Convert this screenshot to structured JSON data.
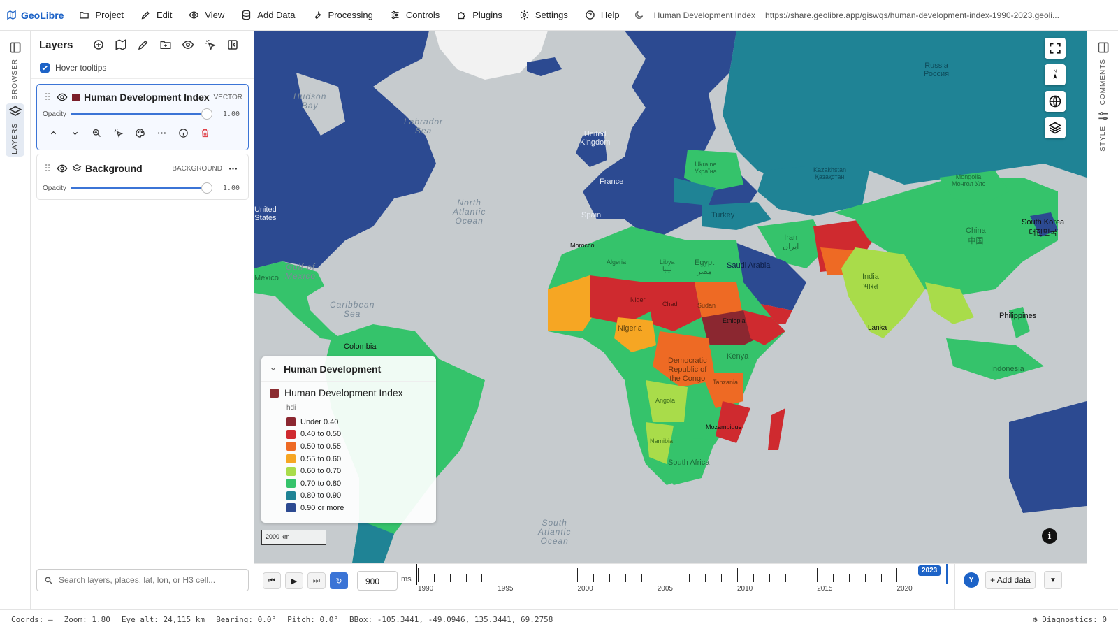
{
  "app": {
    "name": "GeoLibre",
    "doc_title": "Human Development Index",
    "url": "https://share.geolibre.app/giswqs/human-development-index-1990-2023.geoli..."
  },
  "menu": [
    {
      "label": "Project",
      "icon": "folder-icon"
    },
    {
      "label": "Edit",
      "icon": "pencil-icon"
    },
    {
      "label": "View",
      "icon": "eye-icon"
    },
    {
      "label": "Add Data",
      "icon": "database-icon"
    },
    {
      "label": "Processing",
      "icon": "wrench-icon"
    },
    {
      "label": "Controls",
      "icon": "sliders-icon"
    },
    {
      "label": "Plugins",
      "icon": "puzzle-icon"
    },
    {
      "label": "Settings",
      "icon": "gear-icon"
    },
    {
      "label": "Help",
      "icon": "help-circle-icon"
    }
  ],
  "left_rail": {
    "browser_label": "BROWSER",
    "layers_label": "LAYERS"
  },
  "right_rail": {
    "comments_label": "COMMENTS",
    "style_label": "STYLE"
  },
  "layers_panel": {
    "title": "Layers",
    "hover_tooltips_label": "Hover tooltips",
    "hover_tooltips_checked": true,
    "opacity_label": "Opacity",
    "layers": [
      {
        "name": "Human Development Index",
        "type": "VECTOR",
        "opacity": "1.00",
        "color": "#7b1f2a"
      },
      {
        "name": "Background",
        "type": "BACKGROUND",
        "opacity": "1.00"
      }
    ],
    "search_placeholder": "Search layers, places, lat, lon, or H3 cell..."
  },
  "map": {
    "ocean_labels": [
      {
        "id": "hudson",
        "text": "Hudson\nBay"
      },
      {
        "id": "labrador",
        "text": "Labrador\nSea"
      },
      {
        "id": "north-atlantic",
        "text": "North\nAtlantic\nOcean"
      },
      {
        "id": "gulf-mexico",
        "text": "Gulf of\nMexico"
      },
      {
        "id": "caribbean",
        "text": "Caribbean\nSea"
      },
      {
        "id": "south-atlantic",
        "text": "South\nAtlantic\nOcean"
      }
    ],
    "place_labels": [
      {
        "id": "united-states",
        "text": "United\nStates"
      },
      {
        "id": "russia",
        "text": "Russia\nРоссия"
      },
      {
        "id": "kazakhstan",
        "text": "Kazakhstan\nҚазақстан"
      },
      {
        "id": "mongolia",
        "text": "Mongolia\nМонгол Улс"
      },
      {
        "id": "china",
        "text": "China\n中国"
      },
      {
        "id": "south-korea",
        "text": "South Korea\n대한민국"
      },
      {
        "id": "india",
        "text": "India\nभारत"
      },
      {
        "id": "iran",
        "text": "Iran\nایران"
      },
      {
        "id": "turkey",
        "text": "Turkey"
      },
      {
        "id": "egypt",
        "text": "Egypt\nمصر"
      },
      {
        "id": "libya",
        "text": "Libya\nليبيا"
      },
      {
        "id": "algeria",
        "text": "Algeria"
      },
      {
        "id": "niger",
        "text": "Niger"
      },
      {
        "id": "chad",
        "text": "Chad"
      },
      {
        "id": "sudan",
        "text": "Sudan"
      },
      {
        "id": "saudi-arabia",
        "text": "Saudi Arabia"
      },
      {
        "id": "nigeria",
        "text": "Nigeria"
      },
      {
        "id": "drc",
        "text": "Democratic\nRepublic of\nthe Congo"
      },
      {
        "id": "angola",
        "text": "Angola"
      },
      {
        "id": "tanzania",
        "text": "Tanzania"
      },
      {
        "id": "kenya",
        "text": "Kenya"
      },
      {
        "id": "mozambique",
        "text": "Mozambique"
      },
      {
        "id": "namibia",
        "text": "Namibia"
      },
      {
        "id": "south-africa",
        "text": "South Africa"
      },
      {
        "id": "france",
        "text": "France"
      },
      {
        "id": "spain",
        "text": "Spain"
      },
      {
        "id": "uk",
        "text": "United\nKingdom"
      },
      {
        "id": "ukraine",
        "text": "Ukraine\nУкраїна"
      },
      {
        "id": "philippines",
        "text": "Philippines"
      },
      {
        "id": "sri-lanka",
        "text": "Lanka"
      },
      {
        "id": "indonesia",
        "text": "Indonesia"
      },
      {
        "id": "colombia",
        "text": "Colombia"
      },
      {
        "id": "mexico",
        "text": "Mexico"
      },
      {
        "id": "morocco",
        "text": "Morocco"
      },
      {
        "id": "ethiopia",
        "text": "Ethiopia"
      }
    ],
    "scale_label": "2000 km",
    "legend": {
      "title": "Human Development",
      "layer_name": "Human Development Index",
      "layer_color": "#7b1f2a",
      "field": "hdi",
      "items": [
        {
          "label": "Under 0.40",
          "color": "#8b2730"
        },
        {
          "label": "0.40 to 0.50",
          "color": "#cf2a2f"
        },
        {
          "label": "0.50 to 0.55",
          "color": "#ee6a24"
        },
        {
          "label": "0.55 to 0.60",
          "color": "#f6a623"
        },
        {
          "label": "0.60 to 0.70",
          "color": "#a9dc4a"
        },
        {
          "label": "0.70 to 0.80",
          "color": "#35c36b"
        },
        {
          "label": "0.80 to 0.90",
          "color": "#1f8395"
        },
        {
          "label": "0.90 or more",
          "color": "#2c4a91"
        }
      ]
    }
  },
  "timeline": {
    "speed": "900",
    "speed_unit": "ms",
    "years_labeled": [
      "1990",
      "1995",
      "2000",
      "2005",
      "2010",
      "2015",
      "2020"
    ],
    "current_year": "2023",
    "start_year": 1990,
    "end_year": 2023,
    "add_data_label": "+ Add data",
    "user_initial": "Y"
  },
  "status": {
    "coords": "Coords: —",
    "zoom": "Zoom: 1.80",
    "eye_alt": "Eye alt: 24,115 km",
    "bearing": "Bearing: 0.0°",
    "pitch": "Pitch: 0.0°",
    "bbox": "BBox: -105.3441, -49.0946, 135.3441, 69.2758",
    "diagnostics": "Diagnostics: 0"
  },
  "colors": {
    "accent": "#1d63c7",
    "ocean": "#c6cbce",
    "topbar_border": "#e3e3e3"
  }
}
